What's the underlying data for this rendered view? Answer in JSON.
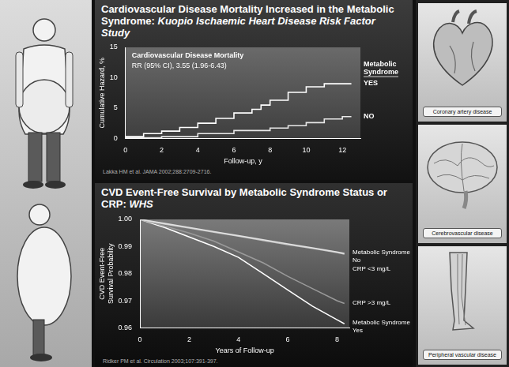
{
  "chart_data": [
    {
      "type": "line",
      "title": "Cardiovascular Disease Mortality Increased in the Metabolic Syndrome:",
      "subtitle": "Kuopio Ischaemic Heart Disease Risk Factor Study",
      "annotations": [
        "Cardiovascular Disease Mortality",
        "RR (95% CI), 3.55 (1.96-6.43)"
      ],
      "legend_title": "Metabolic Syndrome",
      "source": "Lakka HM et al. JAMA 2002;288:2709-2716.",
      "x_label": "Follow-up, y",
      "y_label": "Cumulative Hazard, %",
      "line_style": "step",
      "grid": false,
      "xlim": [
        0,
        13
      ],
      "xticks": [
        0,
        2,
        4,
        6,
        8,
        10,
        12
      ],
      "ylim": [
        0,
        15
      ],
      "yticks": [
        0,
        5,
        10,
        15
      ],
      "series": [
        {
          "name": "YES",
          "color": "#ffffff",
          "x": [
            0,
            1,
            2,
            3,
            4,
            5,
            6,
            7,
            7.5,
            8,
            9,
            10,
            11,
            11.5,
            12.5
          ],
          "values": [
            0,
            0.3,
            0.8,
            1.2,
            1.8,
            2.5,
            3.3,
            4.2,
            4.8,
            5.5,
            6.3,
            7.6,
            8.5,
            9.0,
            9.0
          ]
        },
        {
          "name": "NO",
          "color": "#e8e8e8",
          "x": [
            0,
            2,
            4,
            6,
            8,
            9,
            10,
            11,
            12,
            12.5
          ],
          "values": [
            0,
            0.1,
            0.3,
            0.8,
            1.3,
            1.7,
            2.1,
            2.6,
            3.2,
            3.6
          ]
        }
      ]
    },
    {
      "type": "line",
      "title": "CVD Event-Free Survival by Metabolic Syndrome Status or CRP:",
      "subtitle": "WHS",
      "source": "Ridker PM et al. Circulation 2003;107:391-397.",
      "x_label": "Years of Follow-up",
      "y_label": "CVD Event-Free Survival Probability",
      "line_style": "solid",
      "grid": false,
      "xlim": [
        0,
        8.5
      ],
      "xticks": [
        0,
        2,
        4,
        6,
        8
      ],
      "ylim": [
        0.96,
        1.0
      ],
      "yticks": [
        0.96,
        0.97,
        0.98,
        0.99,
        {
          "value": 1.0,
          "label": "1.00"
        }
      ],
      "series": [
        {
          "name": "Metabolic Syndrome No",
          "color": "#e0e0e0",
          "x": [
            0,
            1,
            2,
            3,
            4,
            5,
            6,
            7,
            8,
            8.3
          ],
          "values": [
            1.0,
            0.9985,
            0.997,
            0.9955,
            0.994,
            0.9925,
            0.991,
            0.9895,
            0.988,
            0.9875
          ]
        },
        {
          "name": "CRP <3 mg/L",
          "color": "#c4c4c4",
          "x": [
            0,
            1,
            2,
            3,
            4,
            5,
            6,
            7,
            8,
            8.3
          ],
          "values": [
            1.0,
            0.9983,
            0.9968,
            0.9953,
            0.9938,
            0.9922,
            0.9907,
            0.9893,
            0.9878,
            0.9872
          ]
        },
        {
          "name": "CRP >3 mg/L",
          "color": "#9a9a9a",
          "x": [
            0,
            1,
            2,
            3,
            4,
            5,
            6,
            7,
            8,
            8.3
          ],
          "values": [
            1.0,
            0.9975,
            0.995,
            0.992,
            0.988,
            0.984,
            0.979,
            0.9745,
            0.97,
            0.969
          ]
        },
        {
          "name": "Metabolic Syndrome Yes",
          "color": "#ffffff",
          "x": [
            0,
            1,
            2,
            3,
            4,
            5,
            6,
            7,
            8,
            8.3
          ],
          "values": [
            1.0,
            0.997,
            0.9935,
            0.99,
            0.986,
            0.98,
            0.974,
            0.968,
            0.963,
            0.9615
          ]
        }
      ]
    }
  ],
  "figure_labels": [
    "Coronary artery disease",
    "Cerebrovascular disease",
    "Peripheral vascular disease"
  ]
}
